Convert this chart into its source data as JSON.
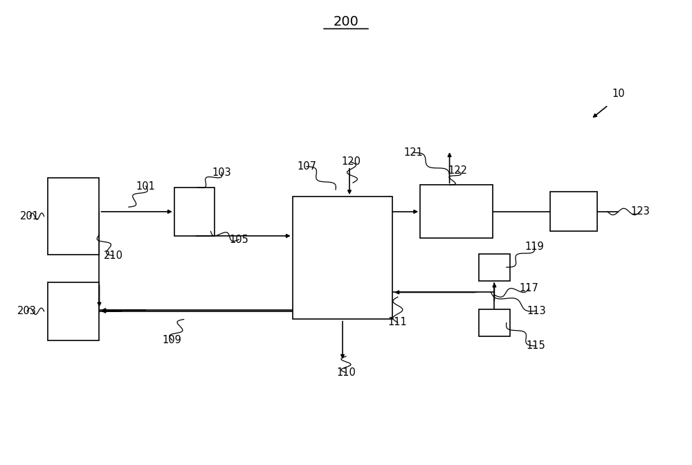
{
  "bg_color": "#ffffff",
  "title": "200",
  "lw": 1.2,
  "boxes": {
    "b201": [
      0.105,
      0.535,
      0.075,
      0.165
    ],
    "b103": [
      0.28,
      0.545,
      0.058,
      0.105
    ],
    "b_main": [
      0.495,
      0.445,
      0.145,
      0.265
    ],
    "b122": [
      0.66,
      0.545,
      0.105,
      0.115
    ],
    "b123": [
      0.83,
      0.545,
      0.068,
      0.085
    ],
    "b203": [
      0.105,
      0.33,
      0.075,
      0.125
    ],
    "b119": [
      0.715,
      0.425,
      0.045,
      0.058
    ],
    "b115": [
      0.715,
      0.305,
      0.045,
      0.058
    ]
  },
  "arrow_scale": 8
}
